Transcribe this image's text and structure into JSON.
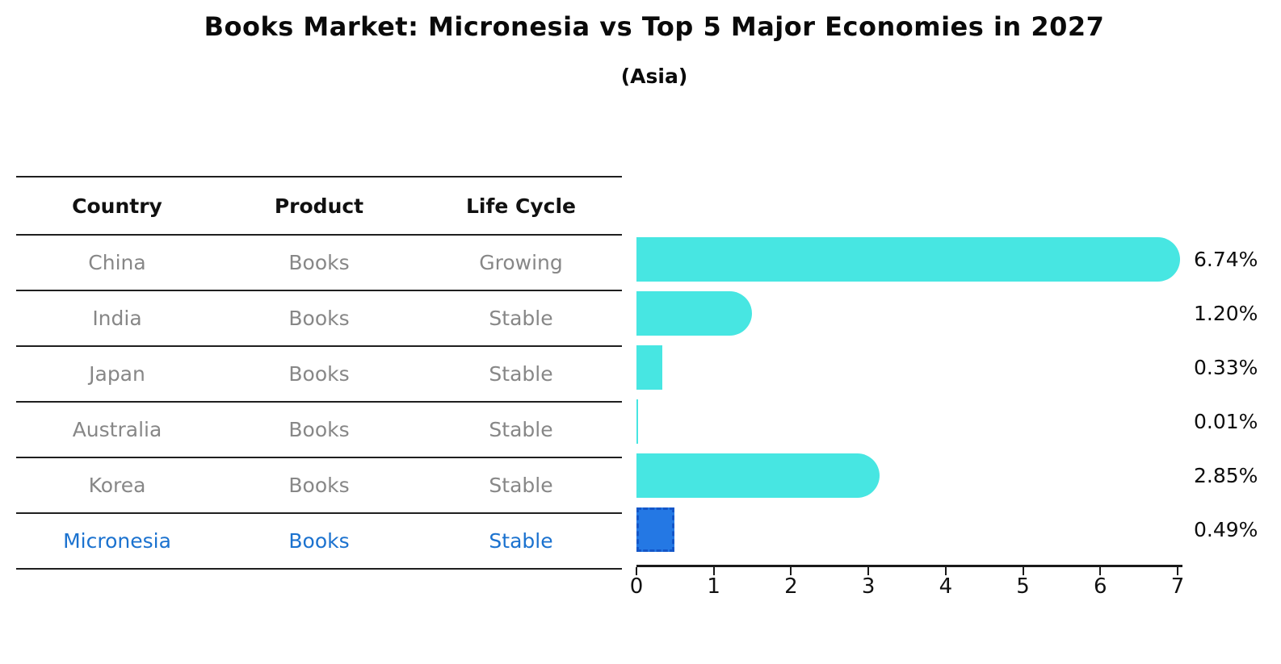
{
  "title": "Books Market: Micronesia vs Top 5 Major Economies in 2027",
  "subtitle": "(Asia)",
  "table": {
    "headers": [
      "Country",
      "Product",
      "Life Cycle"
    ],
    "rows": [
      {
        "country": "China",
        "product": "Books",
        "life_cycle": "Growing",
        "highlight": false
      },
      {
        "country": "India",
        "product": "Books",
        "life_cycle": "Stable",
        "highlight": false
      },
      {
        "country": "Japan",
        "product": "Books",
        "life_cycle": "Stable",
        "highlight": false
      },
      {
        "country": "Australia",
        "product": "Books",
        "life_cycle": "Stable",
        "highlight": false
      },
      {
        "country": "Korea",
        "product": "Books",
        "life_cycle": "Stable",
        "highlight": false
      },
      {
        "country": "Micronesia",
        "product": "Books",
        "life_cycle": "Stable",
        "highlight": true
      }
    ]
  },
  "chart_data": {
    "type": "bar",
    "orientation": "horizontal",
    "title": "Books Market: Micronesia vs Top 5 Major Economies in 2027",
    "subtitle": "(Asia)",
    "categories": [
      "China",
      "India",
      "Japan",
      "Australia",
      "Korea",
      "Micronesia"
    ],
    "values": [
      6.74,
      1.2,
      0.33,
      0.01,
      2.85,
      0.49
    ],
    "value_labels": [
      "6.74%",
      "1.20%",
      "0.33%",
      "0.01%",
      "2.85%",
      "0.49%"
    ],
    "xlabel": "",
    "ylabel": "",
    "xlim": [
      0,
      7
    ],
    "x_ticks": [
      0,
      1,
      2,
      3,
      4,
      5,
      6,
      7
    ],
    "grid": false,
    "legend": false,
    "highlight_index": 5,
    "colors": {
      "bar": "#47E6E2",
      "highlight_fill": "#2478E4",
      "highlight_border": "#1456C8",
      "highlight_text": "#1b72cf",
      "table_text": "#878787",
      "axis": "#1a1a1a",
      "label_text": "#0d0d0d"
    }
  }
}
